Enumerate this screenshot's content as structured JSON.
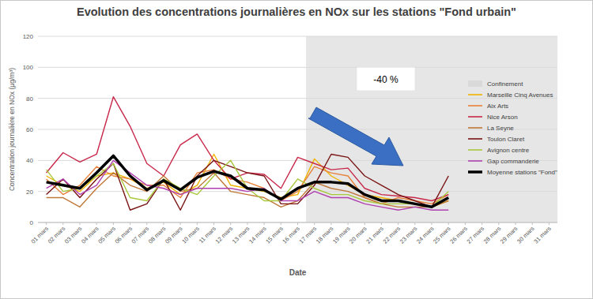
{
  "chart_data": {
    "type": "line",
    "title": "Evolution des concentrations journalières en NOx sur les stations \"Fond urbain\"",
    "x_label": "Date",
    "y_label": "Concentration journalière en NOx (µg/m³)",
    "categories": [
      "01 mars",
      "02 mars",
      "03 mars",
      "04 mars",
      "05 mars",
      "06 mars",
      "07 mars",
      "08 mars",
      "09 mars",
      "10 mars",
      "11 mars",
      "12 mars",
      "13 mars",
      "14 mars",
      "15 mars",
      "16 mars",
      "17 mars",
      "18 mars",
      "19 mars",
      "20 mars",
      "21 mars",
      "22 mars",
      "23 mars",
      "24 mars",
      "25 mars",
      "26 mars",
      "27 mars",
      "28 mars",
      "29 mars",
      "30 mars",
      "31 mars"
    ],
    "series": [
      {
        "name": "Marseille Cinq Avenues",
        "color": "#f0b400",
        "values": [
          30,
          24,
          20,
          30,
          32,
          28,
          22,
          26,
          18,
          24,
          44,
          24,
          22,
          20,
          16,
          18,
          41,
          30,
          24,
          18,
          16,
          14,
          12,
          10,
          14,
          null,
          null,
          null,
          null,
          null,
          null
        ]
      },
      {
        "name": "Aix Arts",
        "color": "#e8823a",
        "values": [
          28,
          18,
          24,
          36,
          30,
          28,
          24,
          24,
          16,
          32,
          34,
          28,
          26,
          22,
          14,
          20,
          36,
          32,
          30,
          16,
          12,
          16,
          14,
          12,
          18,
          null,
          null,
          null,
          null,
          null,
          null
        ]
      },
      {
        "name": "Nice Arson",
        "color": "#c8284a",
        "values": [
          32,
          45,
          39,
          44,
          81,
          62,
          38,
          30,
          50,
          57,
          40,
          28,
          32,
          31,
          22,
          42,
          38,
          34,
          35,
          22,
          18,
          17,
          16,
          14,
          18,
          null,
          null,
          null,
          null,
          null,
          null
        ]
      },
      {
        "name": "La Seyne",
        "color": "#c07838",
        "values": [
          16,
          16,
          10,
          22,
          32,
          24,
          20,
          30,
          20,
          22,
          32,
          20,
          18,
          16,
          10,
          14,
          26,
          22,
          20,
          16,
          12,
          10,
          10,
          10,
          14,
          null,
          null,
          null,
          null,
          null,
          null
        ]
      },
      {
        "name": "Toulon Claret",
        "color": "#7a1414",
        "values": [
          18,
          28,
          16,
          28,
          38,
          8,
          12,
          28,
          8,
          30,
          40,
          36,
          32,
          30,
          12,
          12,
          24,
          44,
          42,
          30,
          24,
          18,
          14,
          10,
          30,
          null,
          null,
          null,
          null,
          null,
          null
        ]
      },
      {
        "name": "Avignon centre",
        "color": "#a8c83c",
        "values": [
          34,
          20,
          22,
          30,
          38,
          16,
          14,
          28,
          22,
          18,
          30,
          40,
          22,
          14,
          14,
          28,
          22,
          18,
          18,
          14,
          12,
          12,
          12,
          10,
          20,
          null,
          null,
          null,
          null,
          null,
          null
        ]
      },
      {
        "name": "Gap commanderie",
        "color": "#b040b0",
        "values": [
          22,
          28,
          18,
          24,
          40,
          32,
          24,
          22,
          18,
          22,
          22,
          22,
          20,
          22,
          14,
          14,
          20,
          16,
          16,
          12,
          10,
          8,
          10,
          8,
          8,
          null,
          null,
          null,
          null,
          null,
          null
        ]
      },
      {
        "name": "Moyenne stations \"Fond\"",
        "color": "#000000",
        "line_style": "thick",
        "values": [
          26,
          24,
          22,
          32,
          43,
          30,
          21,
          27,
          21,
          29,
          33,
          30,
          22,
          21,
          15,
          22,
          26,
          26,
          25,
          18,
          14,
          14,
          12,
          10,
          16,
          null,
          null,
          null,
          null,
          null,
          null
        ]
      }
    ],
    "ylim": [
      0,
      120
    ],
    "yticks": [
      0,
      20,
      40,
      60,
      80,
      100,
      120
    ],
    "grid": true,
    "legend": "right",
    "highlight": {
      "label": "Confinement",
      "from": "17 mars",
      "to": "31 mars"
    },
    "annotations": [
      {
        "text": "-40 %"
      }
    ]
  }
}
